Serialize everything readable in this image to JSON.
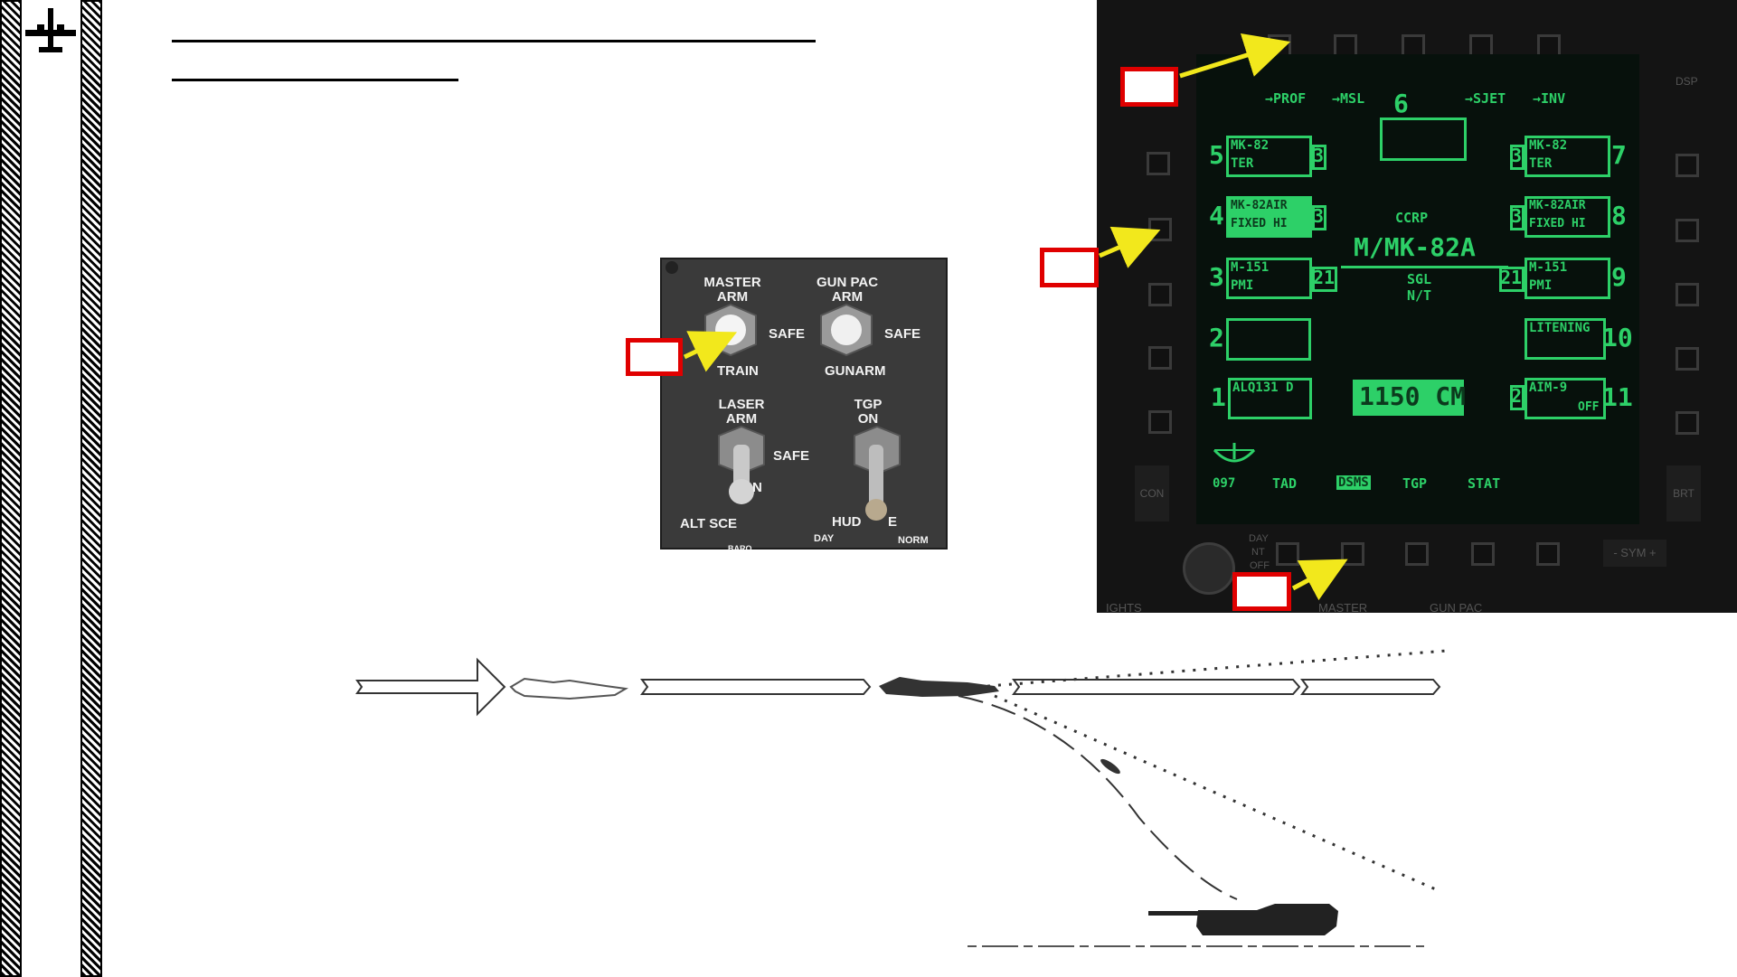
{
  "mfcd": {
    "top_labels": [
      "→PROF",
      "→MSL",
      "6",
      "→SJET",
      "→INV"
    ],
    "station_numbers_left": [
      "5",
      "4",
      "3",
      "2",
      "1"
    ],
    "station_numbers_right": [
      "7",
      "8",
      "9",
      "10",
      "11"
    ],
    "stations": {
      "s5": {
        "line1": "MK-82",
        "line2": "TER",
        "count": "3"
      },
      "s4": {
        "line1": "MK-82AIR",
        "line2": "FIXED HI",
        "count": "3"
      },
      "s3": {
        "line1": "M-151",
        "line2": "PMI",
        "count": "21"
      },
      "s2": {
        "line1": "",
        "line2": ""
      },
      "s1": {
        "line1": "ALQ131 D",
        "line2": ""
      },
      "s7": {
        "line1": "MK-82",
        "line2": "TER",
        "count": "3"
      },
      "s8": {
        "line1": "MK-82AIR",
        "line2": "FIXED HI",
        "count": "3"
      },
      "s9": {
        "line1": "M-151",
        "line2": "PMI",
        "count": "21"
      },
      "s10": {
        "line1": "LITENING",
        "line2": ""
      },
      "s11": {
        "line1": "AIM-9",
        "line2": "OFF",
        "count": "2"
      }
    },
    "mode": "CCRP",
    "profile": "M/MK-82A",
    "release": "SGL",
    "release2": "N/T",
    "chaff": "1150 CM",
    "heading": "097",
    "bottom_tabs": [
      "TAD",
      "DSMS",
      "TGP",
      "STAT"
    ],
    "bottom_dim": [
      "DAY",
      "NT",
      "OFF"
    ],
    "side_dim_left": "CON",
    "side_dim_right": "BRT",
    "side_dim_top_right": "DSP",
    "sym": "- SYM +",
    "below_labels": [
      "IGHTS",
      "MASTER",
      "GUN PAC"
    ]
  },
  "panel": {
    "master_arm": "MASTER\nARM",
    "gun_pac_arm": "GUN PAC\nARM",
    "safe1": "SAFE",
    "safe2": "SAFE",
    "safe3": "SAFE",
    "train": "TRAIN",
    "gunarm": "GUNARM",
    "laser_arm": "LASER\nARM",
    "tgp_on": "TGP\nON",
    "n": "N",
    "alt_sce": "ALT SCE",
    "hud": "HUD",
    "e": "E",
    "day": "DAY",
    "norm": "NORM",
    "baro": "BARO"
  },
  "colors": {
    "mfcd_green": "#2dd068",
    "callout_red": "#e00000",
    "arrow_yellow": "#f2e81c"
  }
}
